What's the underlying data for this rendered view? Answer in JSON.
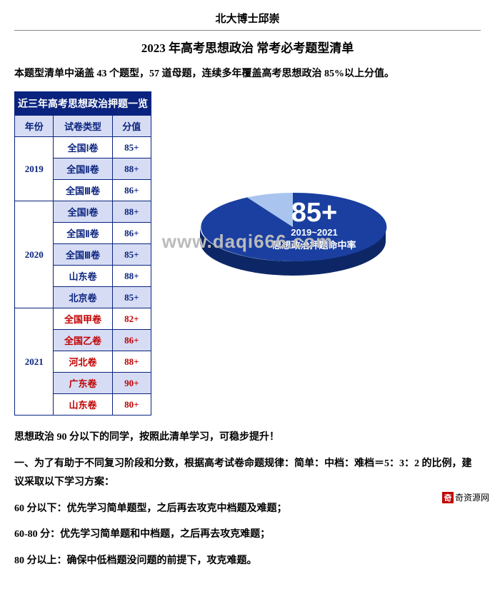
{
  "author": "北大博士邱崇",
  "title": "2023 年高考思想政治 常考必考题型清单",
  "intro": "本题型清单中涵盖 43 个题型，57 道母题，连续多年覆盖高考思想政治 85%以上分值。",
  "table": {
    "header": "近三年高考思想政治押题一览",
    "cols": [
      "年份",
      "试卷类型",
      "分值"
    ],
    "years": [
      {
        "year": "2019",
        "rows": [
          {
            "paper": "全国Ⅰ卷",
            "score": "85+",
            "red": false
          },
          {
            "paper": "全国Ⅱ卷",
            "score": "88+",
            "red": false
          },
          {
            "paper": "全国Ⅲ卷",
            "score": "86+",
            "red": false
          }
        ]
      },
      {
        "year": "2020",
        "rows": [
          {
            "paper": "全国Ⅰ卷",
            "score": "88+",
            "red": false
          },
          {
            "paper": "全国Ⅱ卷",
            "score": "86+",
            "red": false
          },
          {
            "paper": "全国Ⅲ卷",
            "score": "85+",
            "red": false
          },
          {
            "paper": "山东卷",
            "score": "88+",
            "red": false
          },
          {
            "paper": "北京卷",
            "score": "85+",
            "red": false
          }
        ]
      },
      {
        "year": "2021",
        "rows": [
          {
            "paper": "全国甲卷",
            "score": "82+",
            "red": true
          },
          {
            "paper": "全国乙卷",
            "score": "86+",
            "red": true
          },
          {
            "paper": "河北卷",
            "score": "88+",
            "red": true
          },
          {
            "paper": "广东卷",
            "score": "90+",
            "red": true
          },
          {
            "paper": "山东卷",
            "score": "80+",
            "red": true
          }
        ]
      }
    ]
  },
  "pie": {
    "big_label": "85+",
    "year_range": "2019~2021",
    "caption": "思想政治押题命中率",
    "slice_pct": 85,
    "colors": {
      "main_top": "#1a3fa0",
      "main_side": "#0d2766",
      "small_top": "#a9c5ef",
      "small_side": "#7fa3d8",
      "text": "#ffffff"
    }
  },
  "watermark": "www.daqi666.com",
  "body": {
    "p1": "思想政治 90 分以下的同学，按照此清单学习，可稳步提升！",
    "p2": "一、为了有助于不同复习阶段和分数，根据高考试卷命题规律：简单：中档：难档＝5：3：2 的比例，建议采取以下学习方案：",
    "p3": "60 分以下：优先学习简单题型，之后再去攻克中档题及难题；",
    "p4": "60-80 分：优先学习简单题和中档题，之后再去攻克难题；",
    "p5": "80 分以上：确保中低档题没问题的前提下，攻克难题。"
  },
  "logo_text": "奇资源网"
}
